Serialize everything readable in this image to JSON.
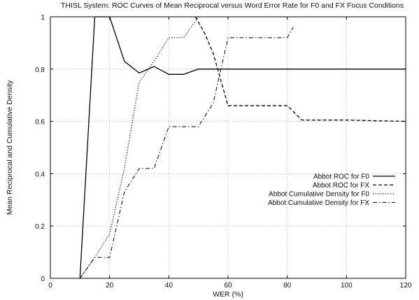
{
  "chart_data": {
    "type": "line",
    "title": "THISL System: ROC Curves of Mean Reciprocal versus Word Error Rate for F0 and FX Focus Conditions",
    "xlabel": "WER (%)",
    "ylabel": "Mean Reciprocal and Cumulative Density",
    "xlim": [
      0,
      120
    ],
    "ylim": [
      0,
      1
    ],
    "xticks": [
      0,
      20,
      40,
      60,
      80,
      100,
      120
    ],
    "yticks": [
      0,
      0.2,
      0.4,
      0.6,
      0.8,
      1
    ],
    "grid": true,
    "legend_position": "center-right",
    "series": [
      {
        "name": "Abbot ROC for F0",
        "style": "solid",
        "color": "#000000",
        "x": [
          10,
          15,
          20,
          25,
          30,
          35,
          40,
          45,
          50,
          60,
          80,
          120
        ],
        "y": [
          0,
          1.0,
          1.0,
          0.83,
          0.785,
          0.81,
          0.78,
          0.78,
          0.8,
          0.8,
          0.8,
          0.8
        ]
      },
      {
        "name": "Abbot ROC for FX",
        "style": "dashed",
        "color": "#000000",
        "x": [
          49,
          52,
          55,
          58,
          60,
          65,
          70,
          80,
          85,
          100,
          120
        ],
        "y": [
          1.0,
          0.94,
          0.86,
          0.74,
          0.66,
          0.66,
          0.66,
          0.66,
          0.605,
          0.605,
          0.6
        ]
      },
      {
        "name": "Abbot Cumulative Density for F0",
        "style": "dotted",
        "color": "#000000",
        "x": [
          10,
          15,
          20,
          25,
          30,
          35,
          40,
          45,
          50
        ],
        "y": [
          0,
          0.08,
          0.17,
          0.42,
          0.75,
          0.83,
          0.92,
          0.92,
          1.0
        ]
      },
      {
        "name": "Abbot Cumulative Density for FX",
        "style": "dashdot",
        "color": "#000000",
        "x": [
          10,
          15,
          20,
          25,
          30,
          35,
          40,
          45,
          50,
          55,
          60,
          65,
          70,
          80,
          82
        ],
        "y": [
          0,
          0.08,
          0.08,
          0.33,
          0.42,
          0.42,
          0.58,
          0.58,
          0.58,
          0.67,
          0.92,
          0.92,
          0.92,
          0.92,
          0.96
        ]
      }
    ]
  }
}
